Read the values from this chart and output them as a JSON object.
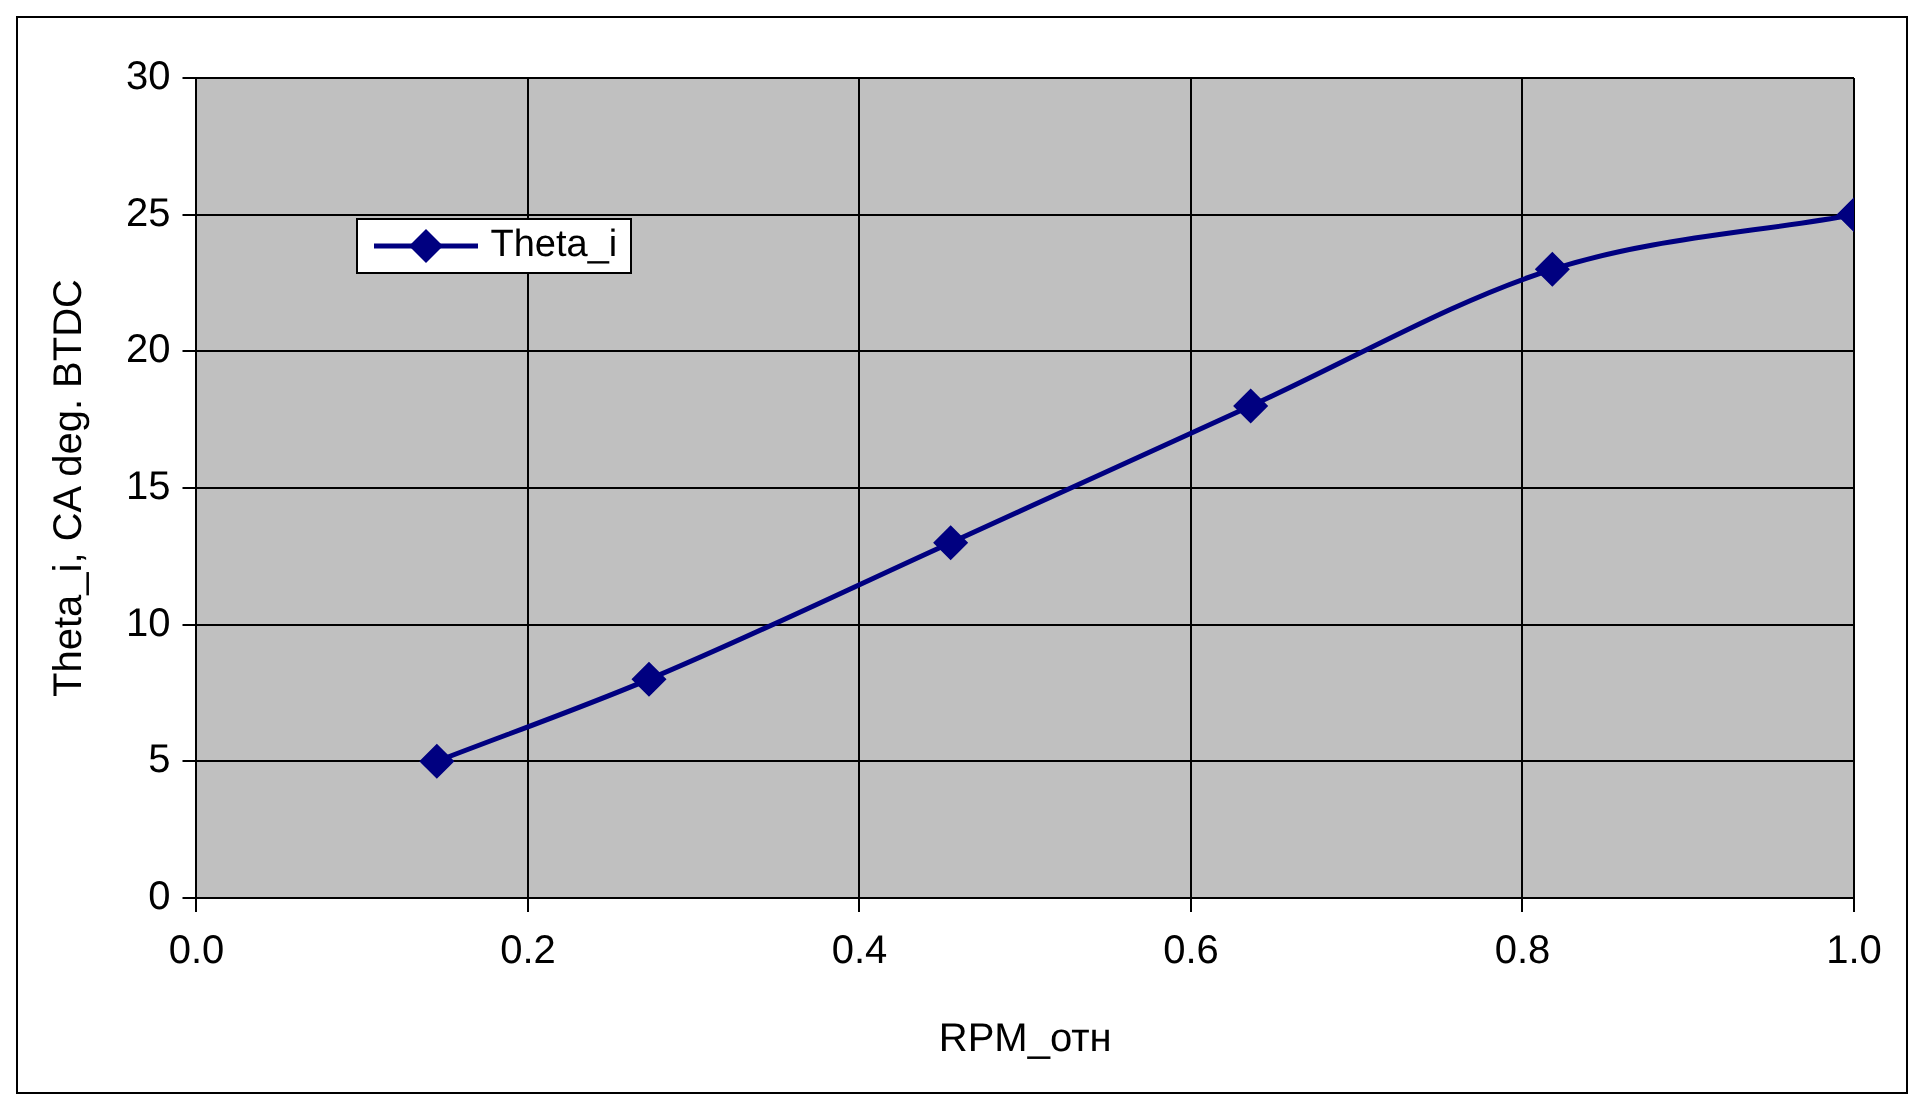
{
  "chart_data": {
    "type": "line",
    "xlabel": "RPM_отн",
    "ylabel": "Theta_i, CA deg. BTDC",
    "x": [
      0.145,
      0.273,
      0.455,
      0.636,
      0.818,
      1.0
    ],
    "series": [
      {
        "name": "Theta_i",
        "color": "#000080",
        "values": [
          5,
          8,
          13,
          18,
          23,
          25
        ]
      }
    ],
    "xlim": [
      0,
      1
    ],
    "xticks": [
      {
        "value": 0,
        "label": "0.0"
      },
      {
        "value": 0.2,
        "label": "0.2"
      },
      {
        "value": 0.4,
        "label": "0.4"
      },
      {
        "value": 0.6,
        "label": "0.6"
      },
      {
        "value": 0.8,
        "label": "0.8"
      },
      {
        "value": 1,
        "label": "1.0"
      }
    ],
    "ylim": [
      0,
      30
    ],
    "yticks": [
      0,
      5,
      10,
      15,
      20,
      25,
      30
    ],
    "grid": true,
    "legend": "top left",
    "marker": "diamond",
    "line_style": "solid"
  }
}
